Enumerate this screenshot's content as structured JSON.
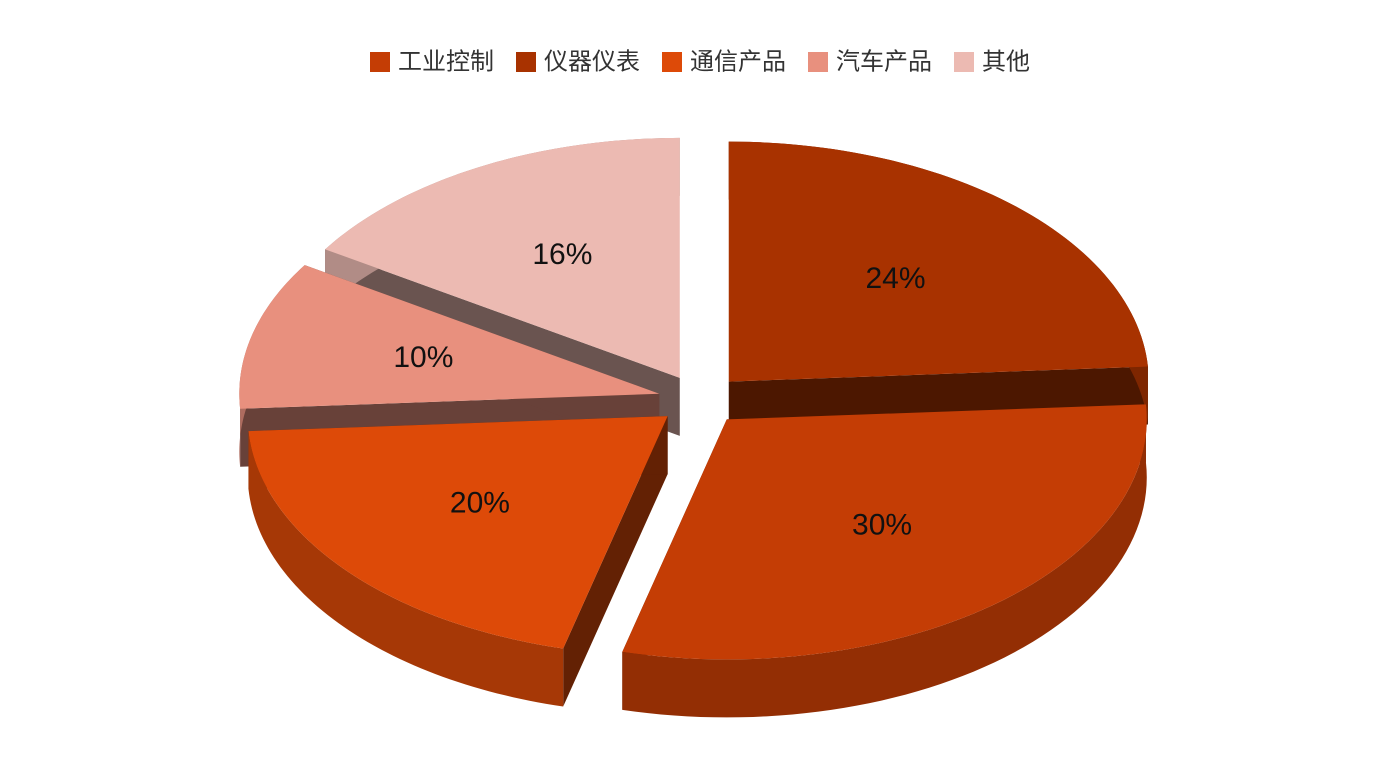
{
  "chart_data": {
    "type": "pie",
    "categories": [
      "工业控制",
      "仪器仪表",
      "通信产品",
      "汽车产品",
      "其他"
    ],
    "values": [
      30,
      24,
      20,
      10,
      16
    ],
    "value_labels": [
      "30%",
      "24%",
      "20%",
      "10%",
      "16%"
    ],
    "colors": [
      "#c43d05",
      "#a83200",
      "#dd4a08",
      "#e8907e",
      "#ecbab2"
    ],
    "order": [
      "工业控制",
      "通信产品",
      "汽车产品",
      "其他",
      "仪器仪表"
    ],
    "legend": "top"
  }
}
